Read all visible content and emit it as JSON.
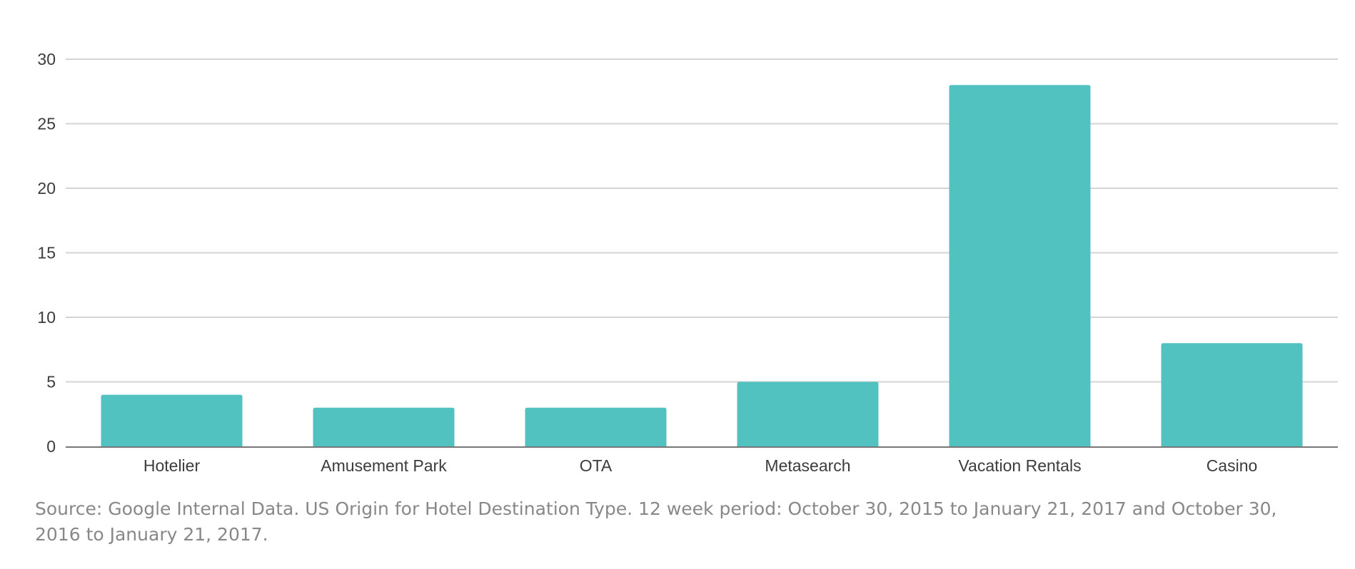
{
  "chart_data": {
    "type": "bar",
    "title": "",
    "xlabel": "",
    "ylabel": "",
    "categories": [
      "Hotelier",
      "Amusement Park",
      "OTA",
      "Metasearch",
      "Vacation Rentals",
      "Casino"
    ],
    "values": [
      4,
      3,
      3,
      5,
      28,
      8
    ],
    "ylim": [
      0,
      30
    ],
    "yticks": [
      "0",
      "5",
      "10",
      "15",
      "20",
      "25",
      "30"
    ],
    "grid": true,
    "legend": "none",
    "bar_color": "#52c2c0",
    "grid_color": "#d4d4d4",
    "axis_color": "#777777",
    "label_color": "#3c3c3c"
  },
  "source_note": "Source: Google Internal Data. US Origin for Hotel Destination Type. 12 week period: October 30, 2015 to January 21, 2017 and October 30, 2016 to January 21, 2017."
}
